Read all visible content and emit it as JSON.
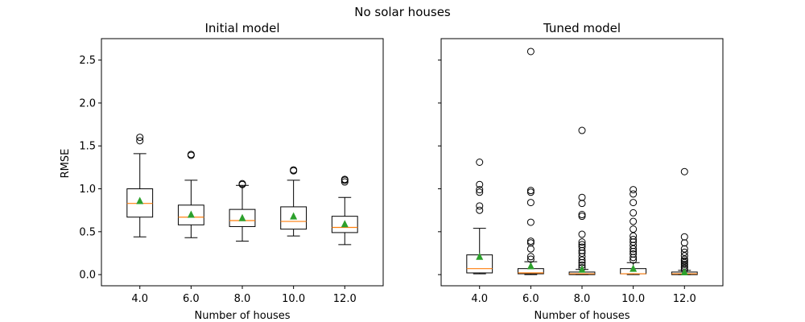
{
  "figure": {
    "suptitle": "No solar houses"
  },
  "chart_data": [
    {
      "type": "box",
      "title": "Initial model",
      "xlabel": "Number of houses",
      "ylabel": "RMSE",
      "ylim": [
        -0.13,
        2.75
      ],
      "yticks": [
        0.0,
        0.5,
        1.0,
        1.5,
        2.0,
        2.5
      ],
      "ytick_labels": [
        "0.0",
        "0.5",
        "1.0",
        "1.5",
        "2.0",
        "2.5"
      ],
      "show_yticklabels": true,
      "categories": [
        "4.0",
        "6.0",
        "8.0",
        "10.0",
        "12.0"
      ],
      "boxes": [
        {
          "category": "4.0",
          "whislo": 0.44,
          "q1": 0.67,
          "median": 0.83,
          "q3": 1.0,
          "whishi": 1.41,
          "mean": 0.86,
          "fliers": [
            1.56,
            1.6
          ]
        },
        {
          "category": "6.0",
          "whislo": 0.43,
          "q1": 0.58,
          "median": 0.67,
          "q3": 0.81,
          "whishi": 1.1,
          "mean": 0.7,
          "fliers": [
            1.39,
            1.4
          ]
        },
        {
          "category": "8.0",
          "whislo": 0.39,
          "q1": 0.56,
          "median": 0.63,
          "q3": 0.76,
          "whishi": 1.04,
          "mean": 0.66,
          "fliers": [
            1.05,
            1.06
          ]
        },
        {
          "category": "10.0",
          "whislo": 0.45,
          "q1": 0.53,
          "median": 0.62,
          "q3": 0.79,
          "whishi": 1.1,
          "mean": 0.68,
          "fliers": [
            1.21,
            1.22
          ]
        },
        {
          "category": "12.0",
          "whislo": 0.35,
          "q1": 0.49,
          "median": 0.55,
          "q3": 0.68,
          "whishi": 0.9,
          "mean": 0.59,
          "fliers": [
            1.08,
            1.1,
            1.11
          ]
        }
      ]
    },
    {
      "type": "box",
      "title": "Tuned model",
      "xlabel": "Number of houses",
      "ylabel": "",
      "ylim": [
        -0.13,
        2.75
      ],
      "yticks": [
        0.0,
        0.5,
        1.0,
        1.5,
        2.0,
        2.5
      ],
      "ytick_labels": [
        "0.0",
        "0.5",
        "1.0",
        "1.5",
        "2.0",
        "2.5"
      ],
      "show_yticklabels": false,
      "categories": [
        "4.0",
        "6.0",
        "8.0",
        "10.0",
        "12.0"
      ],
      "boxes": [
        {
          "category": "4.0",
          "whislo": 0.01,
          "q1": 0.02,
          "median": 0.07,
          "q3": 0.23,
          "whishi": 0.54,
          "mean": 0.21,
          "fliers": [
            0.75,
            0.8,
            0.96,
            0.99,
            1.05,
            1.31
          ]
        },
        {
          "category": "6.0",
          "whislo": 0.0,
          "q1": 0.01,
          "median": 0.02,
          "q3": 0.07,
          "whishi": 0.15,
          "mean": 0.1,
          "fliers": [
            0.18,
            0.21,
            0.3,
            0.37,
            0.39,
            0.61,
            0.84,
            0.96,
            0.98,
            2.6
          ]
        },
        {
          "category": "8.0",
          "whislo": 0.0,
          "q1": 0.0,
          "median": 0.01,
          "q3": 0.03,
          "whishi": 0.06,
          "mean": 0.06,
          "fliers": [
            0.08,
            0.11,
            0.14,
            0.17,
            0.21,
            0.25,
            0.28,
            0.32,
            0.35,
            0.38,
            0.47,
            0.68,
            0.7,
            0.83,
            0.9,
            1.68
          ]
        },
        {
          "category": "10.0",
          "whislo": 0.0,
          "q1": 0.01,
          "median": 0.01,
          "q3": 0.07,
          "whishi": 0.14,
          "mean": 0.07,
          "fliers": [
            0.17,
            0.2,
            0.24,
            0.27,
            0.3,
            0.34,
            0.38,
            0.41,
            0.45,
            0.53,
            0.62,
            0.72,
            0.84,
            0.94,
            0.99
          ]
        },
        {
          "category": "12.0",
          "whislo": 0.0,
          "q1": 0.0,
          "median": 0.01,
          "q3": 0.03,
          "whishi": 0.05,
          "mean": 0.03,
          "fliers": [
            0.06,
            0.08,
            0.1,
            0.12,
            0.14,
            0.16,
            0.18,
            0.22,
            0.26,
            0.3,
            0.37,
            0.44,
            1.2
          ]
        }
      ]
    }
  ]
}
